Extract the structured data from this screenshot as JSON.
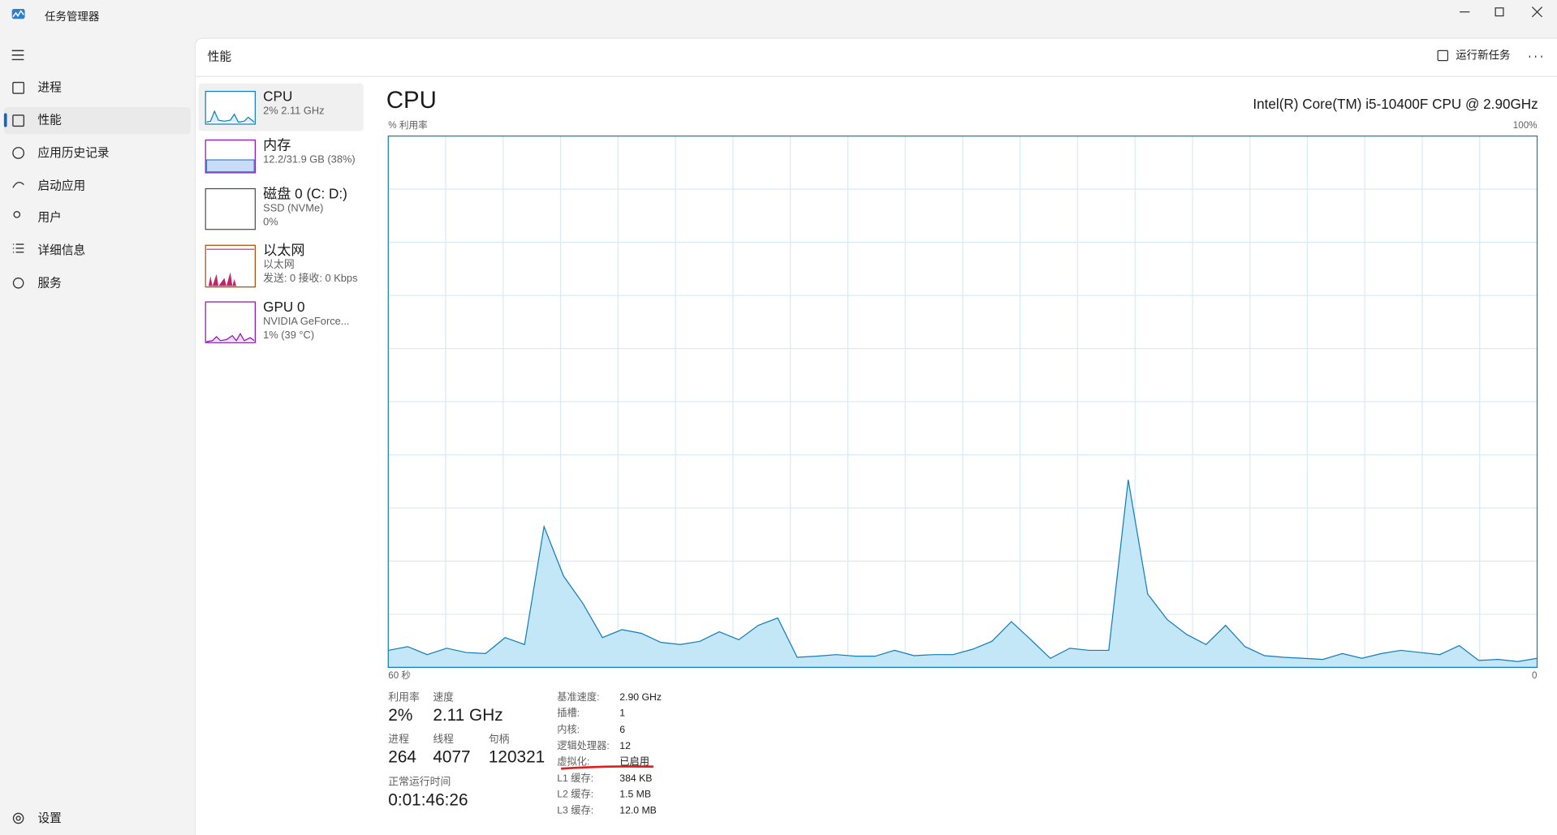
{
  "window": {
    "title": "任务管理器"
  },
  "nav": {
    "items": [
      "进程",
      "性能",
      "应用历史记录",
      "启动应用",
      "用户",
      "详细信息",
      "服务"
    ],
    "settings": "设置"
  },
  "header": {
    "title": "性能",
    "run_task": "运行新任务"
  },
  "devices": [
    {
      "name": "CPU",
      "lines": [
        "2% 2.11 GHz"
      ]
    },
    {
      "name": "内存",
      "lines": [
        "12.2/31.9 GB (38%)"
      ]
    },
    {
      "name": "磁盘 0 (C: D:)",
      "lines": [
        "SSD (NVMe)",
        "0%"
      ]
    },
    {
      "name": "以太网",
      "lines": [
        "以太网",
        "发送: 0 接收: 0 Kbps"
      ]
    },
    {
      "name": "GPU 0",
      "lines": [
        "NVIDIA GeForce...",
        "1% (39 °C)"
      ]
    }
  ],
  "detail": {
    "title": "CPU",
    "model": "Intel(R) Core(TM) i5-10400F CPU @ 2.90GHz",
    "stats": [
      {
        "label": "利用率",
        "value": "2%"
      },
      {
        "label": "速度",
        "value": "2.11 GHz"
      },
      {
        "label": "进程",
        "value": "264"
      },
      {
        "label": "线程",
        "value": "4077"
      },
      {
        "label": "句柄",
        "value": "120321"
      },
      {
        "label": "正常运行时间",
        "value": "0:01:46:26"
      }
    ],
    "specs": [
      [
        "基准速度:",
        "2.90 GHz"
      ],
      [
        "插槽:",
        "1"
      ],
      [
        "内核:",
        "6"
      ],
      [
        "逻辑处理器:",
        "12"
      ],
      [
        "虚拟化:",
        "已启用"
      ],
      [
        "L1 缓存:",
        "384 KB"
      ],
      [
        "L2 缓存:",
        "1.5 MB"
      ],
      [
        "L3 缓存:",
        "12.0 MB"
      ]
    ]
  },
  "chart_data": {
    "type": "area",
    "y_label": "% 利用率",
    "y_max_label": "100%",
    "x_start_label": "60 秒",
    "x_end_label": "0",
    "ylim": [
      0,
      100
    ],
    "color": "#117dbb",
    "fill": "#c3e7f7",
    "grid": true,
    "values": [
      3.2,
      3.9,
      2.4,
      3.6,
      2.8,
      2.6,
      5.6,
      4.3,
      26.5,
      17.2,
      12.0,
      5.6,
      7.1,
      6.4,
      4.7,
      4.3,
      4.9,
      6.7,
      5.2,
      7.9,
      9.3,
      1.9,
      2.1,
      2.4,
      2.1,
      2.1,
      3.2,
      2.2,
      2.4,
      2.4,
      3.4,
      4.9,
      8.6,
      5.2,
      1.7,
      3.6,
      3.2,
      3.2,
      35.3,
      13.8,
      9.0,
      6.2,
      4.3,
      7.9,
      3.9,
      2.2,
      1.9,
      1.7,
      1.5,
      2.6,
      1.7,
      2.6,
      3.2,
      2.8,
      2.4,
      4.1,
      1.3,
      1.5,
      1.1,
      1.7
    ]
  }
}
